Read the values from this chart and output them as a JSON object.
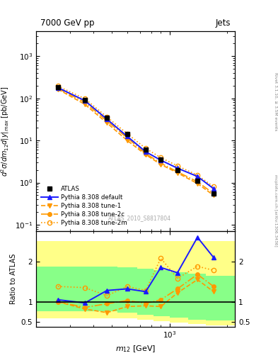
{
  "title_left": "7000 GeV pp",
  "title_right": "Jets",
  "right_label_top": "Rivet 3.1.10, ≥ 3.5M events",
  "right_label_bot": "mcplots.cern.ch [arXiv:1306.3436]",
  "watermark": "ATLAS_2010_S8817804",
  "ylabel_main": "$d^2\\sigma/dm_{12}d|y|_{max}$ [pb/GeV]",
  "ylabel_ratio": "Ratio to ATLAS",
  "xlabel": "$m_{12}$ [GeV]",
  "x_data": [
    260,
    360,
    470,
    600,
    750,
    900,
    1100,
    1400,
    1700
  ],
  "atlas_y": [
    185,
    90,
    35,
    14,
    6.0,
    3.6,
    2.0,
    1.1,
    0.55
  ],
  "pythia_default_y": [
    180,
    88,
    32,
    12.5,
    5.4,
    3.4,
    2.2,
    1.4,
    0.72
  ],
  "pythia_tune1_y": [
    165,
    72,
    26,
    10,
    4.6,
    2.7,
    1.7,
    0.95,
    0.5
  ],
  "pythia_tune2c_y": [
    172,
    80,
    29,
    11.5,
    4.9,
    2.9,
    1.8,
    1.05,
    0.55
  ],
  "pythia_tune2m_y": [
    195,
    98,
    36,
    14.5,
    6.5,
    3.9,
    2.5,
    1.5,
    0.8
  ],
  "ratio_default": [
    1.05,
    0.97,
    1.28,
    1.32,
    1.25,
    1.85,
    1.72,
    2.6,
    2.1
  ],
  "ratio_tune1": [
    1.0,
    0.82,
    0.73,
    0.88,
    0.9,
    0.88,
    1.22,
    1.55,
    1.25
  ],
  "ratio_tune2c": [
    1.0,
    0.86,
    0.95,
    1.03,
    0.96,
    1.05,
    1.32,
    1.68,
    1.38
  ],
  "ratio_tune2m": [
    1.38,
    1.35,
    1.15,
    1.38,
    1.28,
    2.08,
    1.58,
    1.88,
    1.78
  ],
  "x_bins": [
    200,
    310,
    415,
    535,
    675,
    825,
    1000,
    1250,
    1550,
    2200
  ],
  "yellow_band_lo": [
    0.58,
    0.58,
    0.58,
    0.58,
    0.55,
    0.52,
    0.48,
    0.44,
    0.42
  ],
  "yellow_band_hi": [
    2.5,
    2.5,
    2.5,
    2.5,
    2.5,
    2.5,
    2.5,
    2.5,
    2.5
  ],
  "green_band_lo": [
    0.76,
    0.76,
    0.76,
    0.72,
    0.68,
    0.64,
    0.6,
    0.56,
    0.53
  ],
  "green_band_hi": [
    1.88,
    1.88,
    1.88,
    1.85,
    1.82,
    1.78,
    1.74,
    1.7,
    1.65
  ],
  "color_blue": "#1a1aff",
  "color_orange": "#ff9900",
  "color_yellow": "#ffff88",
  "color_green": "#88ff88",
  "xlim": [
    200,
    2200
  ],
  "ylim_main": [
    0.07,
    4000
  ],
  "ylim_ratio": [
    0.38,
    2.75
  ]
}
